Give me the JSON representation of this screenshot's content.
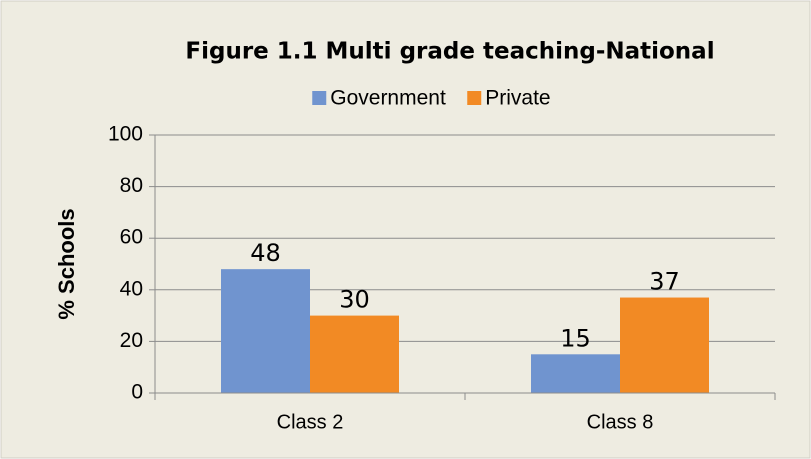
{
  "chart_data": {
    "type": "bar",
    "title": "Figure 1.1 Multi grade teaching-National",
    "y_label": "% Schools",
    "categories": [
      "Class 2",
      "Class 8"
    ],
    "series": [
      {
        "name": "Government",
        "color": "#7094cf",
        "values": [
          48,
          15
        ]
      },
      {
        "name": "Private",
        "color": "#f28a24",
        "values": [
          30,
          37
        ]
      }
    ],
    "ylim": [
      0,
      100
    ],
    "yticks": [
      0,
      20,
      40,
      60,
      80,
      100
    ],
    "grid": true,
    "legend": "top"
  }
}
